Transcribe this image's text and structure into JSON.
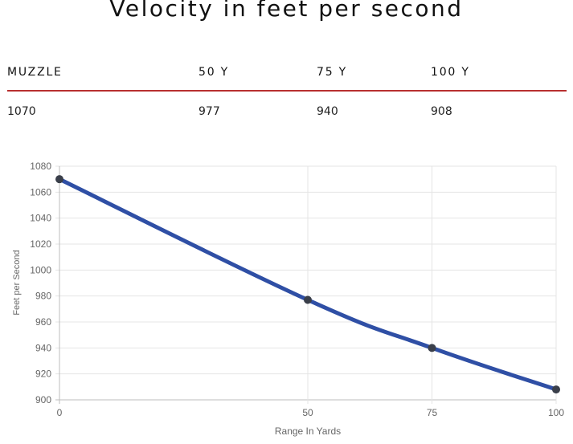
{
  "title": "Velocity in feet per second",
  "table": {
    "headers": [
      "MUZZLE",
      "50 Y",
      "75 Y",
      "100 Y"
    ],
    "values": [
      "1070",
      "977",
      "940",
      "908"
    ]
  },
  "chart_data": {
    "type": "line",
    "x": [
      0,
      50,
      75,
      100
    ],
    "series": [
      {
        "values": [
          1070,
          977,
          940,
          908
        ]
      }
    ],
    "xlabel": "Range In Yards",
    "ylabel": "Feet per Second",
    "xlim": [
      0,
      100
    ],
    "ylim": [
      900,
      1080
    ],
    "x_ticks": [
      0,
      50,
      75,
      100
    ],
    "y_ticks": [
      900,
      920,
      940,
      960,
      980,
      1000,
      1020,
      1040,
      1060,
      1080
    ],
    "grid": true,
    "legend": "none",
    "line_color": "#2f4fa5",
    "point_color": "#3a3f4a"
  }
}
